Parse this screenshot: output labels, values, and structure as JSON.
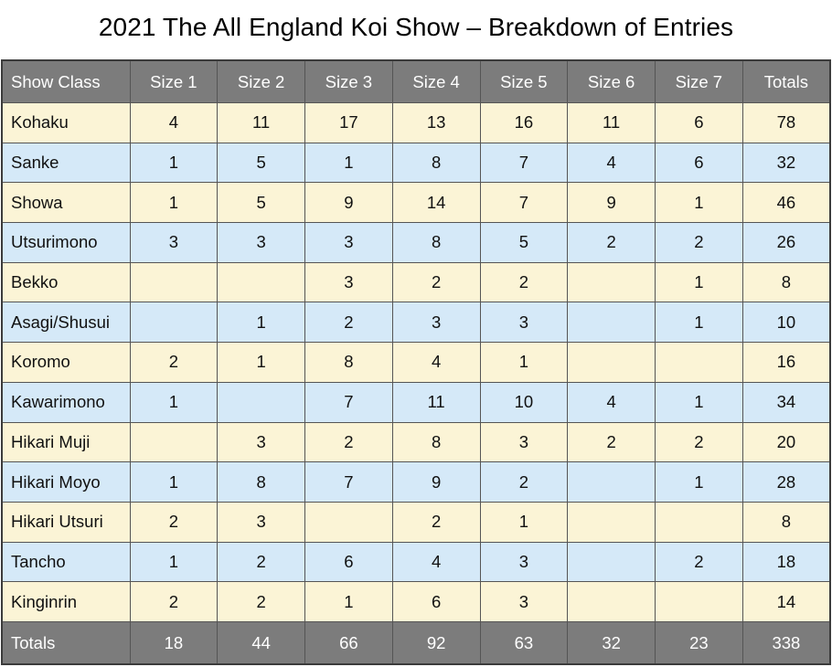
{
  "title": "2021 The All England Koi Show – Breakdown of Entries",
  "table": {
    "headers": [
      "Show Class",
      "Size 1",
      "Size 2",
      "Size 3",
      "Size 4",
      "Size 5",
      "Size 6",
      "Size 7",
      "Totals"
    ],
    "rows": [
      [
        "Kohaku",
        "4",
        "11",
        "17",
        "13",
        "16",
        "11",
        "6",
        "78"
      ],
      [
        "Sanke",
        "1",
        "5",
        "1",
        "8",
        "7",
        "4",
        "6",
        "32"
      ],
      [
        "Showa",
        "1",
        "5",
        "9",
        "14",
        "7",
        "9",
        "1",
        "46"
      ],
      [
        "Utsurimono",
        "3",
        "3",
        "3",
        "8",
        "5",
        "2",
        "2",
        "26"
      ],
      [
        "Bekko",
        "",
        "",
        "3",
        "2",
        "2",
        "",
        "1",
        "8"
      ],
      [
        "Asagi/Shusui",
        "",
        "1",
        "2",
        "3",
        "3",
        "",
        "1",
        "10"
      ],
      [
        "Koromo",
        "2",
        "1",
        "8",
        "4",
        "1",
        "",
        "",
        "16"
      ],
      [
        "Kawarimono",
        "1",
        "",
        "7",
        "11",
        "10",
        "4",
        "1",
        "34"
      ],
      [
        "Hikari Muji",
        "",
        "3",
        "2",
        "8",
        "3",
        "2",
        "2",
        "20"
      ],
      [
        "Hikari Moyo",
        "1",
        "8",
        "7",
        "9",
        "2",
        "",
        "1",
        "28"
      ],
      [
        "Hikari Utsuri",
        "2",
        "3",
        "",
        "2",
        "1",
        "",
        "",
        "8"
      ],
      [
        "Tancho",
        "1",
        "2",
        "6",
        "4",
        "3",
        "",
        "2",
        "18"
      ],
      [
        "Kinginrin",
        "2",
        "2",
        "1",
        "6",
        "3",
        "",
        "",
        "14"
      ]
    ],
    "totals": [
      "Totals",
      "18",
      "44",
      "66",
      "92",
      "63",
      "32",
      "23",
      "338"
    ]
  },
  "colors": {
    "header_bg": "#7c7c7c",
    "row_cream": "#fbf4d6",
    "row_blue": "#d5e9f8"
  }
}
